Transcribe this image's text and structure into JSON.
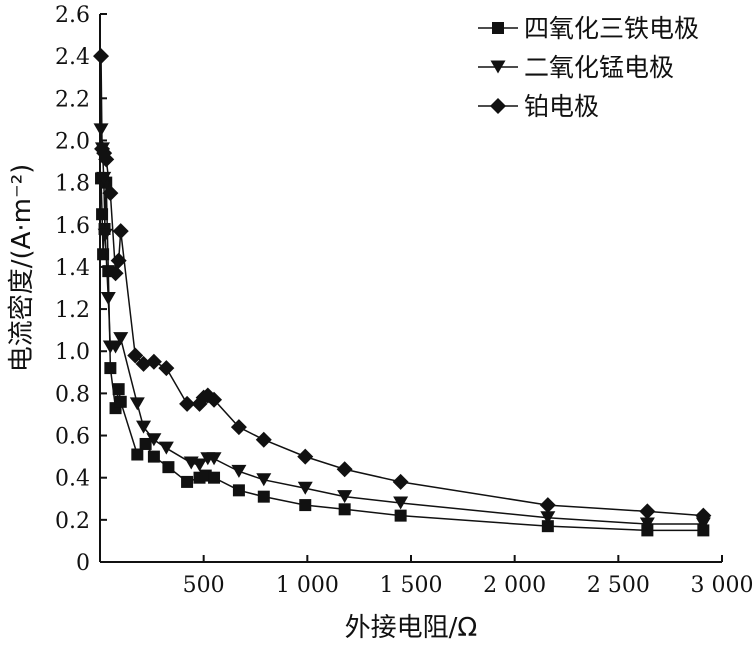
{
  "chart_data": {
    "type": "line",
    "xlabel": "外接电阻/Ω",
    "ylabel": "电流密度/(A·m⁻²)",
    "xlim": [
      0,
      3000
    ],
    "ylim": [
      0,
      2.6
    ],
    "x_ticks": [
      {
        "value": 500,
        "label": "500"
      },
      {
        "value": 1000,
        "label": "1 000"
      },
      {
        "value": 1500,
        "label": "1 500"
      },
      {
        "value": 2000,
        "label": "2 000"
      },
      {
        "value": 2500,
        "label": "2 500"
      },
      {
        "value": 3000,
        "label": "3 000"
      }
    ],
    "y_ticks": [
      {
        "value": 0,
        "label": "0"
      },
      {
        "value": 0.2,
        "label": "0.2"
      },
      {
        "value": 0.4,
        "label": "0.4"
      },
      {
        "value": 0.6,
        "label": "0.6"
      },
      {
        "value": 0.8,
        "label": "0.8"
      },
      {
        "value": 1.0,
        "label": "1.0"
      },
      {
        "value": 1.2,
        "label": "1.2"
      },
      {
        "value": 1.4,
        "label": "1.4"
      },
      {
        "value": 1.6,
        "label": "1.6"
      },
      {
        "value": 1.8,
        "label": "1.8"
      },
      {
        "value": 2.0,
        "label": "2.0"
      },
      {
        "value": 2.2,
        "label": "2.2"
      },
      {
        "value": 2.4,
        "label": "2.4"
      },
      {
        "value": 2.6,
        "label": "2.6"
      }
    ],
    "grid": false,
    "legend_position": "top-right",
    "series": [
      {
        "name": "四氧化三铁电极",
        "marker": "square",
        "x": [
          5,
          10,
          15,
          22,
          30,
          40,
          50,
          75,
          90,
          100,
          180,
          220,
          260,
          330,
          420,
          480,
          510,
          550,
          670,
          790,
          990,
          1180,
          1450,
          2160,
          2640,
          2910
        ],
        "y": [
          1.82,
          1.65,
          1.46,
          1.58,
          1.8,
          1.38,
          0.92,
          0.73,
          0.82,
          0.76,
          0.51,
          0.56,
          0.5,
          0.45,
          0.38,
          0.4,
          0.41,
          0.4,
          0.34,
          0.31,
          0.27,
          0.25,
          0.22,
          0.17,
          0.15,
          0.15
        ]
      },
      {
        "name": "二氧化锰电极",
        "marker": "triangle-down",
        "x": [
          5,
          12,
          18,
          25,
          40,
          50,
          75,
          100,
          180,
          210,
          260,
          320,
          440,
          480,
          520,
          550,
          670,
          790,
          990,
          1180,
          1450,
          2160,
          2640,
          2910
        ],
        "y": [
          2.05,
          1.96,
          1.82,
          1.55,
          1.25,
          1.02,
          1.02,
          1.06,
          0.75,
          0.64,
          0.58,
          0.54,
          0.47,
          0.46,
          0.49,
          0.49,
          0.43,
          0.39,
          0.35,
          0.31,
          0.28,
          0.21,
          0.18,
          0.18
        ]
      },
      {
        "name": "铂电极",
        "marker": "diamond",
        "x": [
          5,
          10,
          20,
          30,
          50,
          75,
          90,
          100,
          170,
          210,
          260,
          320,
          420,
          480,
          500,
          520,
          550,
          670,
          790,
          990,
          1180,
          1450,
          2160,
          2640,
          2910
        ],
        "y": [
          2.4,
          1.96,
          1.94,
          1.91,
          1.75,
          1.37,
          1.43,
          1.57,
          0.98,
          0.94,
          0.95,
          0.92,
          0.75,
          0.75,
          0.78,
          0.79,
          0.77,
          0.64,
          0.58,
          0.5,
          0.44,
          0.38,
          0.27,
          0.24,
          0.22
        ]
      }
    ]
  }
}
